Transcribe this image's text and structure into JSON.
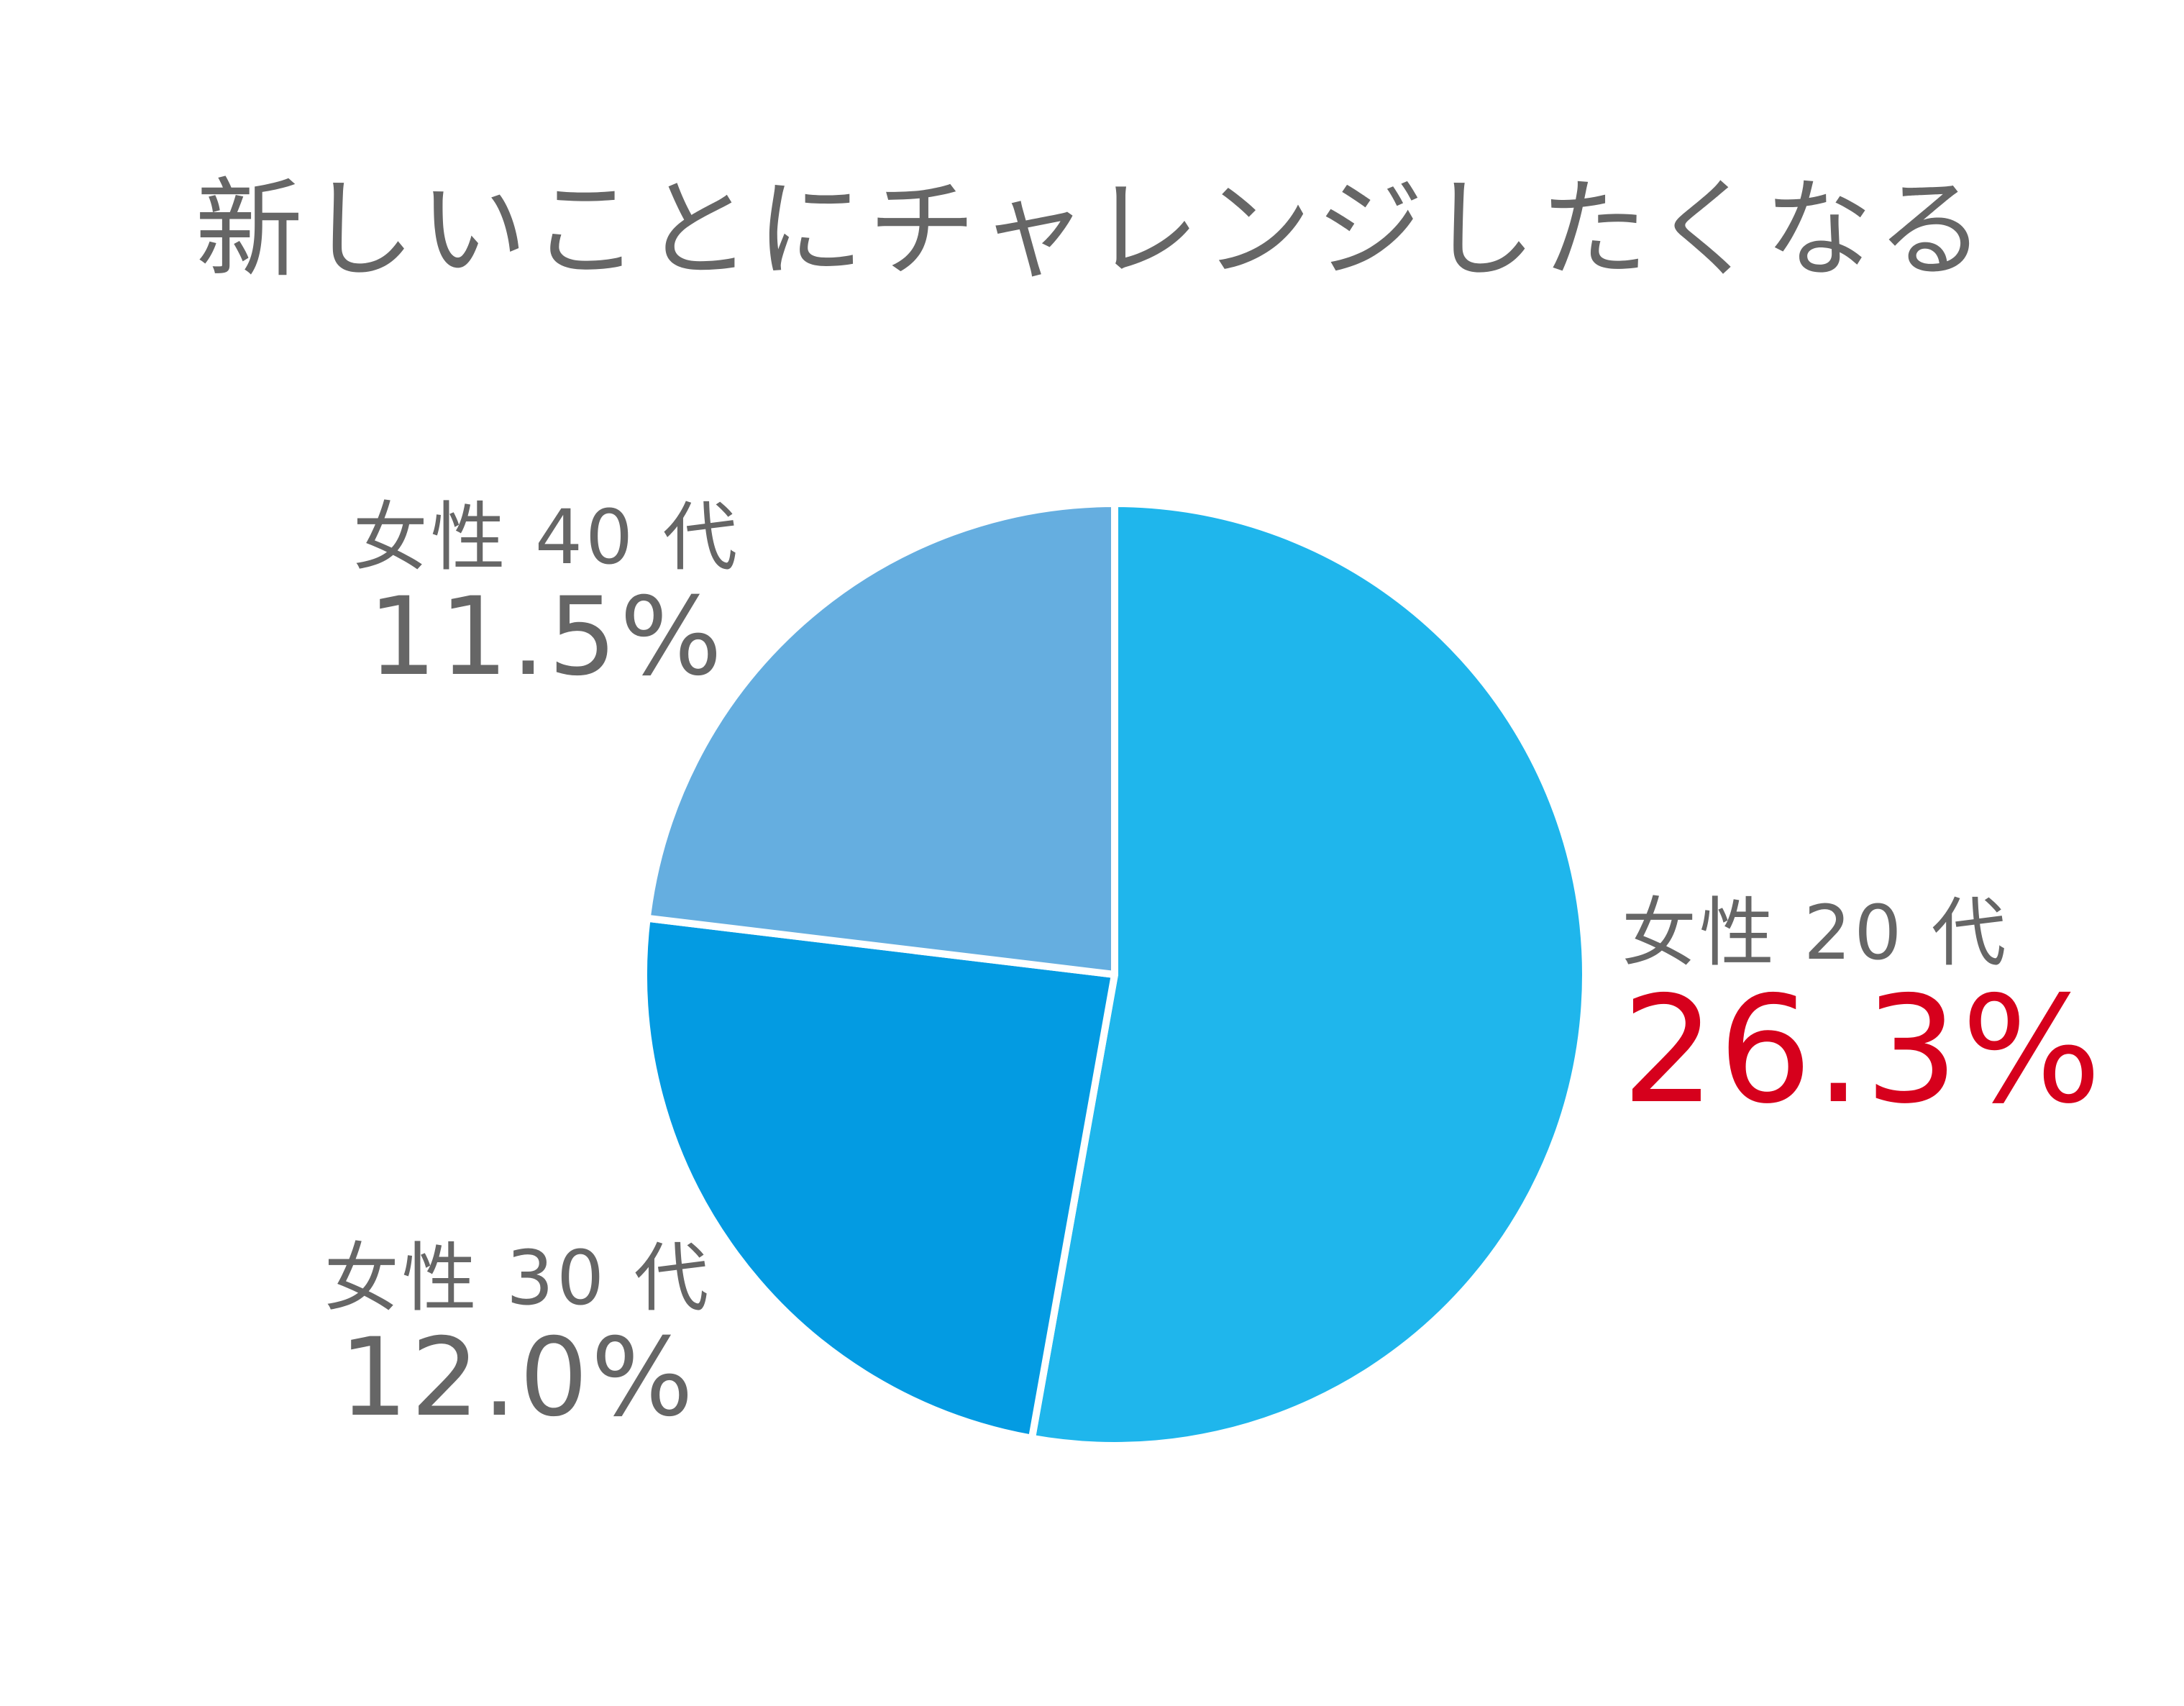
{
  "chart_data": {
    "type": "pie",
    "title": "新しいことにチャレンジしたくなる",
    "slices": [
      {
        "name": "女性 20 代",
        "value": 26.3,
        "label": "26.3%",
        "color": "#1fb6ec",
        "label_color": "#d6001c"
      },
      {
        "name": "女性 30 代",
        "value": 12.0,
        "label": "12.0%",
        "color": "#039be2",
        "label_color": "#666666"
      },
      {
        "name": "女性 40 代",
        "value": 11.5,
        "label": "11.5%",
        "color": "#65aee0",
        "label_color": "#666666"
      }
    ],
    "start": "top",
    "direction": "clockwise",
    "separator_color": "#ffffff"
  }
}
